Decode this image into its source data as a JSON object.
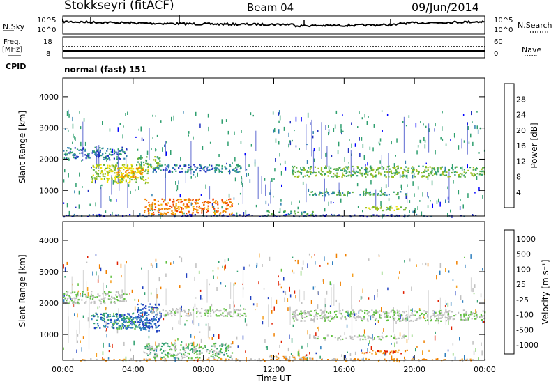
{
  "header": {
    "station": "Stokkseyri (fitACF)",
    "beam": "Beam 04",
    "date": "09/Jun/2014"
  },
  "top_panels": {
    "nsky_label": "N.Sky",
    "nsky_ticks": [
      "10^5",
      "10^0"
    ],
    "nsearch_label": "N.Search",
    "nsearch_ticks": [
      "10^5",
      "10^0"
    ],
    "freq_label_top": "Freq.",
    "freq_label_unit": "[MHz]",
    "freq_ticks": [
      "18",
      "8"
    ],
    "nave_label": "Nave",
    "nave_ticks": [
      "60",
      "0"
    ],
    "cpid_label": "CPID",
    "cpid_value": "normal (fast) 151"
  },
  "chart_data": [
    {
      "type": "heatmap",
      "title": "",
      "xlabel": "",
      "ylabel": "Slant Range [km]",
      "ylim": [
        180,
        4600
      ],
      "yticks": [
        "1000",
        "2000",
        "3000",
        "4000"
      ],
      "xlim": [
        0,
        24
      ],
      "xticks": [
        "00:00",
        "04:00",
        "08:00",
        "12:00",
        "16:00",
        "20:00",
        "00:00"
      ],
      "colorbar": {
        "label": "Power [dB]",
        "ticks": [
          "4",
          "8",
          "12",
          "16",
          "20",
          "24",
          "28"
        ],
        "colors": [
          "#0000ff",
          "#2030c0",
          "#2f7faf",
          "#2f9f6f",
          "#60b040",
          "#a0c020",
          "#f0e000",
          "#f5b000",
          "#f08000",
          "#f04000",
          "#e00000"
        ]
      },
      "regions": [
        {
          "t0": 0,
          "t1": 3.6,
          "r0": 2000,
          "r1": 2400,
          "level": 2
        },
        {
          "t0": 1.6,
          "t1": 4.9,
          "r0": 1250,
          "r1": 1850,
          "level": 5
        },
        {
          "t0": 3.0,
          "t1": 4.6,
          "r0": 1400,
          "r1": 1750,
          "level": 7
        },
        {
          "t0": 4.2,
          "t1": 5.5,
          "r0": 1700,
          "r1": 2100,
          "level": 4
        },
        {
          "t0": 5.0,
          "t1": 10.4,
          "r0": 1600,
          "r1": 1850,
          "level": 2
        },
        {
          "t0": 4.6,
          "t1": 9.6,
          "r0": 250,
          "r1": 750,
          "level": 8
        },
        {
          "t0": 11.6,
          "t1": 14.2,
          "r0": 230,
          "r1": 360,
          "level": 3
        },
        {
          "t0": 13.0,
          "t1": 24,
          "r0": 1450,
          "r1": 1800,
          "level": 4
        },
        {
          "t0": 14.0,
          "t1": 19.5,
          "r0": 850,
          "r1": 1000,
          "level": 3
        },
        {
          "t0": 17.0,
          "t1": 19.6,
          "r0": 380,
          "r1": 520,
          "level": 5
        },
        {
          "t0": 0,
          "t1": 24,
          "r0": 180,
          "r1": 250,
          "level": 1
        }
      ]
    },
    {
      "type": "heatmap",
      "title": "",
      "xlabel": "Time UT",
      "ylabel": "Slant Range [km]",
      "ylim": [
        180,
        4600
      ],
      "yticks": [
        "1000",
        "2000",
        "3000",
        "4000"
      ],
      "xlim": [
        0,
        24
      ],
      "xticks": [
        "00:00",
        "04:00",
        "08:00",
        "12:00",
        "16:00",
        "20:00",
        "00:00"
      ],
      "colorbar": {
        "label": "Velocity [m s⁻¹]",
        "ticks": [
          "1000",
          "500",
          "100",
          "25",
          "-25",
          "-100",
          "-500",
          "-1000"
        ],
        "colors": [
          "#2040c0",
          "#2f7fbf",
          "#2f9f6f",
          "#60c040",
          "#c0c0c0",
          "#c0c0c0",
          "#f5a020",
          "#f08000",
          "#e02000"
        ]
      },
      "regions": [
        {
          "t0": 0,
          "t1": 3.6,
          "r0": 2000,
          "r1": 2400,
          "level": 4
        },
        {
          "t0": 1.6,
          "t1": 4.9,
          "r0": 1200,
          "r1": 1700,
          "level": 1
        },
        {
          "t0": 2.8,
          "t1": 4.2,
          "r0": 1200,
          "r1": 1600,
          "level": 2
        },
        {
          "t0": 4.2,
          "t1": 5.5,
          "r0": 1100,
          "r1": 2000,
          "level": 0
        },
        {
          "t0": 5.0,
          "t1": 10.4,
          "r0": 1600,
          "r1": 1850,
          "level": 4
        },
        {
          "t0": 4.6,
          "t1": 9.6,
          "r0": 250,
          "r1": 750,
          "level": 3
        },
        {
          "t0": 11.6,
          "t1": 14.2,
          "r0": 230,
          "r1": 360,
          "level": 6
        },
        {
          "t0": 13.0,
          "t1": 24,
          "r0": 1450,
          "r1": 1800,
          "level": 4
        },
        {
          "t0": 14.0,
          "t1": 19.5,
          "r0": 850,
          "r1": 1000,
          "level": 4
        },
        {
          "t0": 17.0,
          "t1": 19.6,
          "r0": 380,
          "r1": 520,
          "level": 7
        },
        {
          "t0": 0,
          "t1": 24,
          "r0": 180,
          "r1": 250,
          "level": 6
        }
      ]
    }
  ]
}
